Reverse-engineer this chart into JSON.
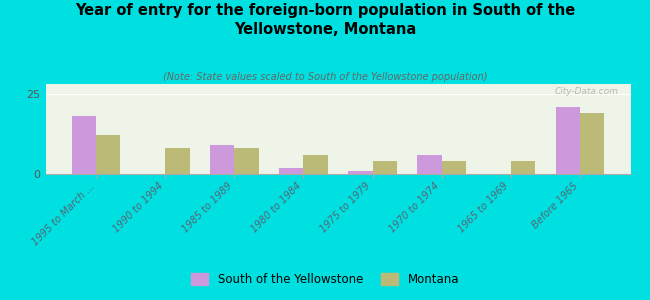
{
  "title": "Year of entry for the foreign-born population in South of the\nYellowstone, Montana",
  "subtitle": "(Note: State values scaled to South of the Yellowstone population)",
  "categories": [
    "1995 to March ...",
    "1990 to 1994",
    "1985 to 1989",
    "1980 to 1984",
    "1975 to 1979",
    "1970 to 1974",
    "1965 to 1969",
    "Before 1965"
  ],
  "south_values": [
    18,
    0,
    9,
    2,
    1,
    6,
    0,
    21
  ],
  "montana_values": [
    12,
    8,
    8,
    6,
    4,
    4,
    4,
    19
  ],
  "south_color": "#cc99dd",
  "montana_color": "#bbbb77",
  "background_color": "#00e0e0",
  "plot_bg": "#eef5e8",
  "ylim": [
    0,
    28
  ],
  "yticks": [
    0,
    25
  ],
  "bar_width": 0.35,
  "watermark": "City-Data.com",
  "legend_south": "South of the Yellowstone",
  "legend_montana": "Montana"
}
